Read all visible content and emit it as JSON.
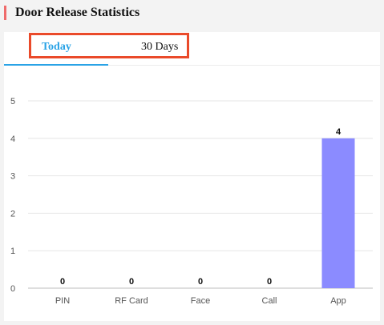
{
  "header": {
    "title": "Door Release Statistics",
    "accent_color": "#ef6b6b"
  },
  "tabs": [
    {
      "label": "Today",
      "active": true,
      "color": "#2aa3e6"
    },
    {
      "label": "30 Days",
      "active": false
    }
  ],
  "highlight_color": "#ea4a2a",
  "chart_data": {
    "type": "bar",
    "categories": [
      "PIN",
      "RF Card",
      "Face",
      "Call",
      "App"
    ],
    "values": [
      0,
      0,
      0,
      0,
      4
    ],
    "data_labels": [
      "0",
      "0",
      "0",
      "0",
      "4"
    ],
    "yticks": [
      "0",
      "1",
      "2",
      "3",
      "4",
      "5"
    ],
    "ylim": [
      0,
      5
    ],
    "grid": true,
    "bar_color": "#8b8bff"
  }
}
